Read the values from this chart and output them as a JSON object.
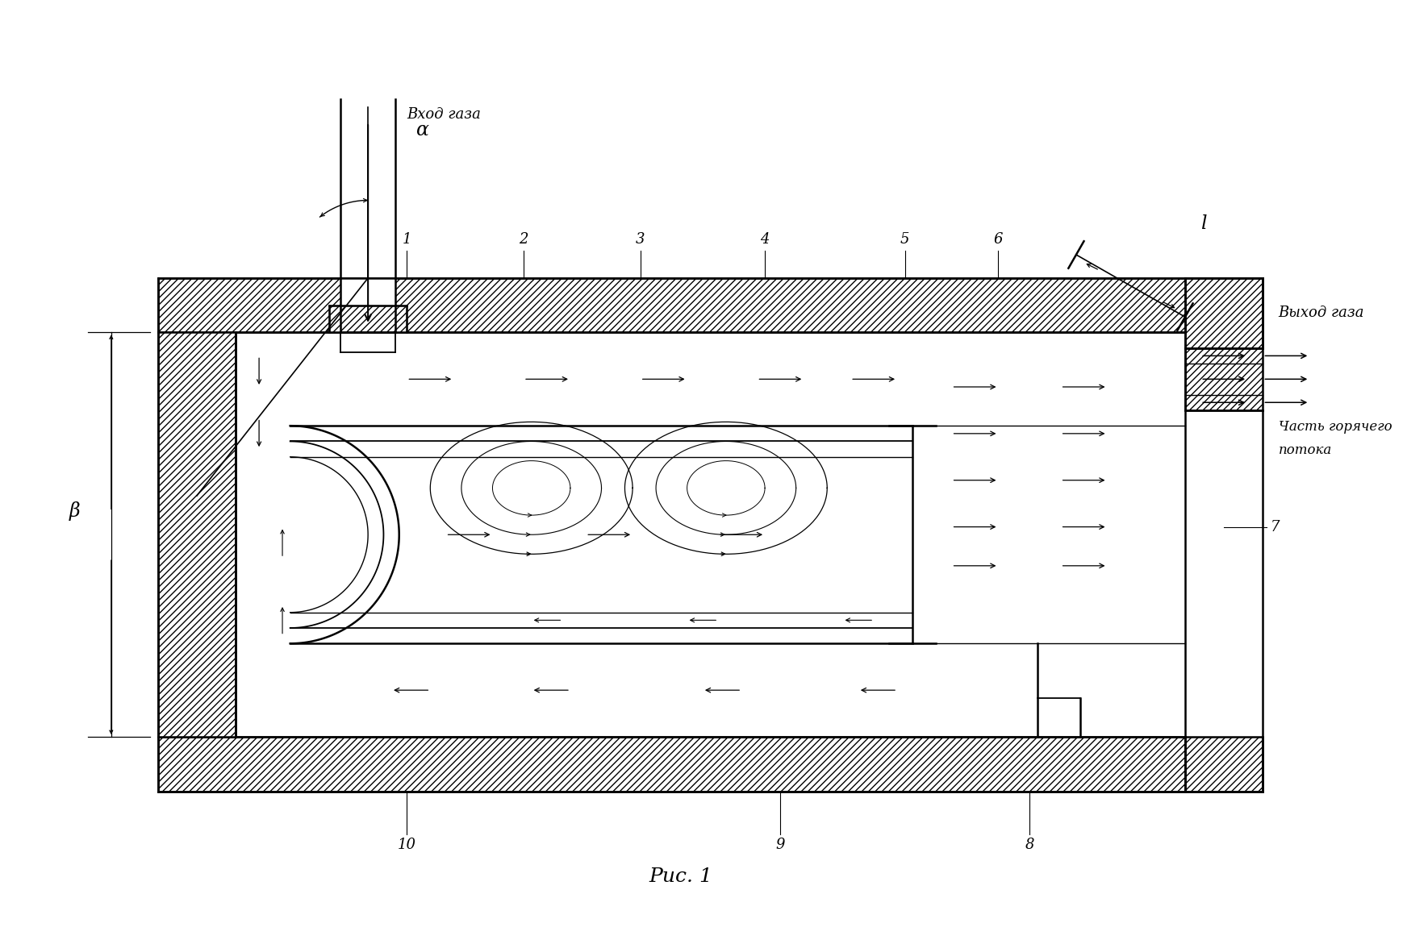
{
  "bg_color": "#ffffff",
  "title": "Рис. 1",
  "label_vhod": "Вход газа",
  "label_vyhod": "Выход газа",
  "label_chast1": "Часть горячего",
  "label_chast2": "потока",
  "label_alpha": "α",
  "label_beta": "β",
  "label_l": "l",
  "nums": [
    "1",
    "2",
    "3",
    "4",
    "5",
    "6",
    "7",
    "8",
    "9",
    "10"
  ],
  "num_x": [
    52,
    67,
    82,
    98,
    116,
    128,
    163,
    132,
    100,
    52
  ],
  "num_y": [
    88,
    88,
    88,
    88,
    88,
    88,
    52,
    12,
    12,
    12
  ],
  "num_ha": [
    "center",
    "center",
    "center",
    "center",
    "center",
    "center",
    "left",
    "center",
    "center",
    "center"
  ],
  "num_va": [
    "bottom",
    "bottom",
    "bottom",
    "bottom",
    "bottom",
    "bottom",
    "center",
    "top",
    "top",
    "top"
  ]
}
